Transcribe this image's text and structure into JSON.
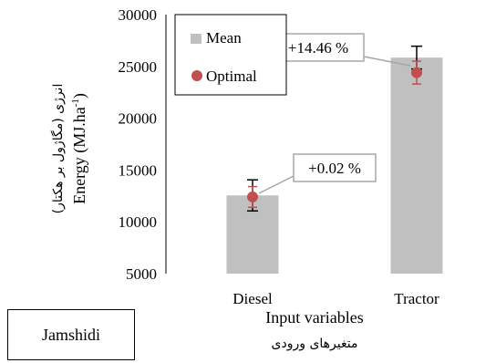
{
  "chart_data": {
    "type": "bar",
    "categories": [
      "Diesel",
      "Tractor"
    ],
    "series": [
      {
        "name": "Mean",
        "values": [
          12550,
          25850
        ],
        "error": [
          1500,
          1100
        ],
        "color": "#c0c0c0"
      },
      {
        "name": "Optimal",
        "values": [
          12400,
          24400
        ],
        "error": [
          1000,
          1100
        ],
        "color": "#c0504d"
      }
    ],
    "annotations": [
      "+0.02 %",
      "+14.46 %"
    ],
    "ylabel": "Energy (MJ.ha",
    "ylabel_sup": "-1",
    "ylabel_fa": "انرژی (مگاژول بر هکتار)",
    "xlabel": "Input variables",
    "xlabel_fa": "متغیرهای ورودی",
    "ylim": [
      5000,
      30000
    ],
    "yticks": [
      "5000",
      "10000",
      "15000",
      "20000",
      "25000",
      "30000"
    ],
    "legend_placement": "top-left",
    "grid": false
  },
  "tag": "Jamshidi"
}
